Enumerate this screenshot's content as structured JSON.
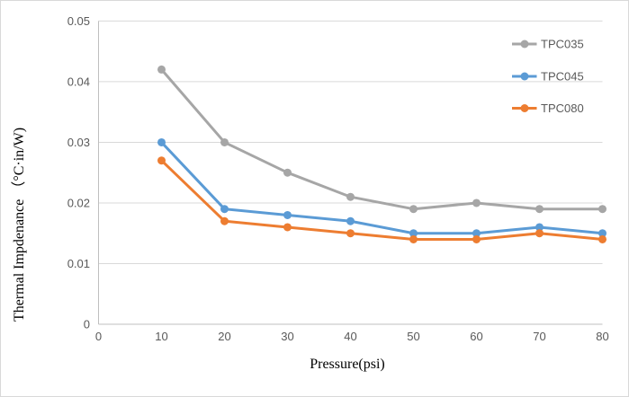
{
  "chart_data": {
    "type": "line",
    "title": "",
    "xlabel": "Pressure(psi)",
    "ylabel": "Thermal Impdenance （°C·in/W)",
    "x": [
      10,
      20,
      30,
      40,
      50,
      60,
      70,
      80
    ],
    "xlim": [
      0,
      80
    ],
    "ylim": [
      0,
      0.05
    ],
    "x_ticks": [
      0,
      10,
      20,
      30,
      40,
      50,
      60,
      70,
      80
    ],
    "x_tick_labels": [
      "0",
      "10",
      "20",
      "30",
      "40",
      "50",
      "60",
      "70",
      "80"
    ],
    "y_ticks": [
      0,
      0.01,
      0.02,
      0.03,
      0.04,
      0.05
    ],
    "y_tick_labels": [
      "0",
      "0.01",
      "0.02",
      "0.03",
      "0.04",
      "0.05"
    ],
    "grid": true,
    "legend_position": "top-right",
    "series": [
      {
        "name": "TPC035",
        "color": "#A6A6A6",
        "values": [
          0.042,
          0.03,
          0.025,
          0.021,
          0.019,
          0.02,
          0.019,
          0.019
        ]
      },
      {
        "name": "TPC045",
        "color": "#5B9BD5",
        "values": [
          0.03,
          0.019,
          0.018,
          0.017,
          0.015,
          0.015,
          0.016,
          0.015
        ]
      },
      {
        "name": "TPC080",
        "color": "#ED7D31",
        "values": [
          0.027,
          0.017,
          0.016,
          0.015,
          0.014,
          0.014,
          0.015,
          0.014
        ]
      }
    ]
  },
  "colors": {
    "grid": "#D9D9D9",
    "axis": "#BFBFBF",
    "tick_text": "#595959",
    "legend_text": "#595959",
    "title_text": "#000000",
    "border": "#D9D9D9",
    "background": "#FFFFFF"
  }
}
